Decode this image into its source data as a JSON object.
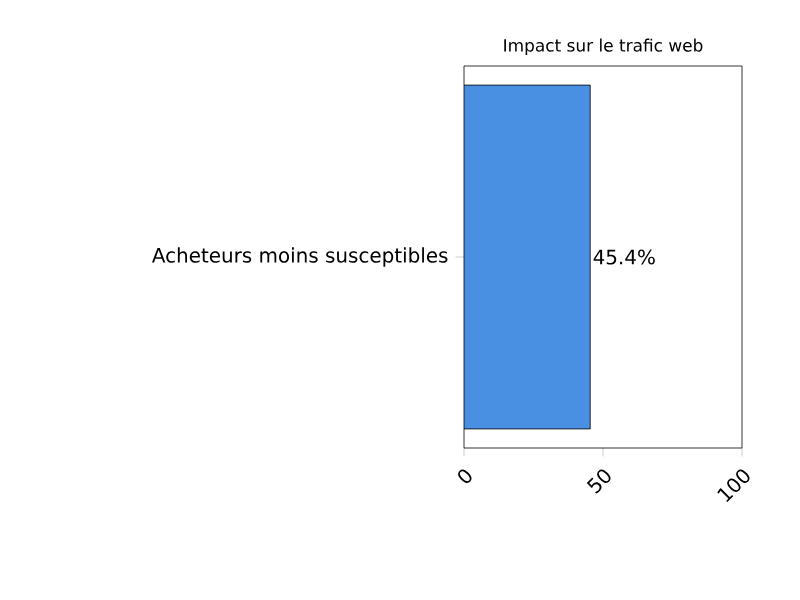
{
  "chart_data": {
    "type": "bar",
    "orientation": "horizontal",
    "title": "Impact sur le trafic web",
    "categories": [
      "Acheteurs moins susceptibles"
    ],
    "values": [
      45.4
    ],
    "value_labels": [
      "45.4%"
    ],
    "color": "#4a90e2",
    "xlim": [
      0,
      100
    ],
    "xticks": [
      0,
      50,
      100
    ]
  }
}
